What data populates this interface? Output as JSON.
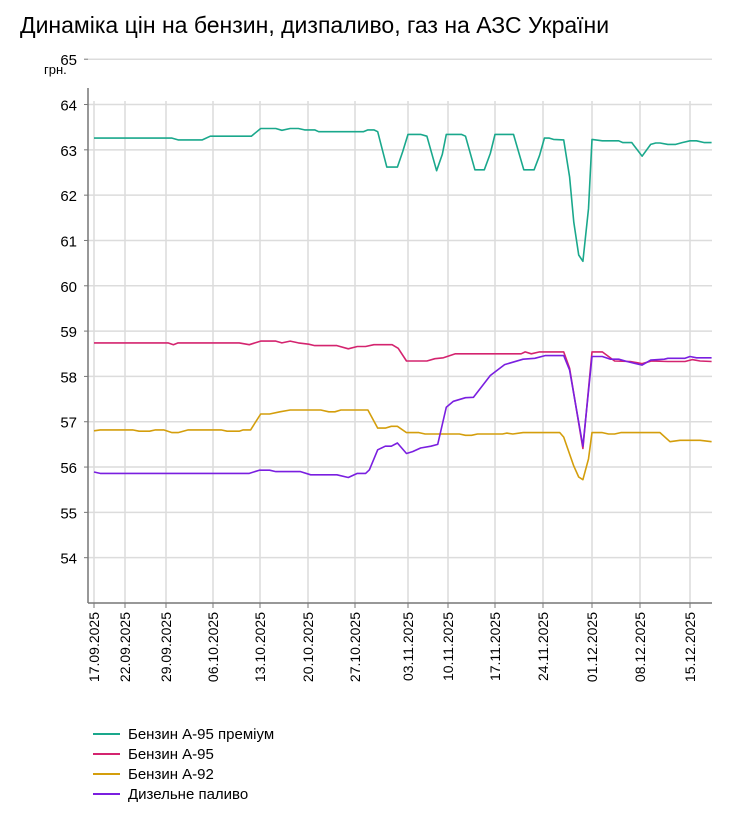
{
  "title": "Динаміка цін на бензин, дизпаливо, газ на АЗС України",
  "chart_data": {
    "type": "line",
    "title": "Динаміка цін на бензин, дизпаливо, газ на АЗС України",
    "ylabel": "грн.",
    "xlabel": "",
    "ylim": [
      53,
      65
    ],
    "yticks": [
      "54",
      "55",
      "56",
      "57",
      "58",
      "59",
      "60",
      "61",
      "62",
      "63",
      "64",
      "65"
    ],
    "x_unit": "days since 17.09.2025",
    "xticks": [
      {
        "label": "17.09.2025",
        "day": 0
      },
      {
        "label": "22.09.2025",
        "day": 5
      },
      {
        "label": "29.09.2025",
        "day": 12
      },
      {
        "label": "06.10.2025",
        "day": 19
      },
      {
        "label": "13.10.2025",
        "day": 26
      },
      {
        "label": "20.10.2025",
        "day": 33
      },
      {
        "label": "27.10.2025",
        "day": 40
      },
      {
        "label": "03.11.2025",
        "day": 47
      },
      {
        "label": "10.11.2025",
        "day": 54
      },
      {
        "label": "17.11.2025",
        "day": 61
      },
      {
        "label": "24.11.2025",
        "day": 68
      },
      {
        "label": "01.12.2025",
        "day": 75
      },
      {
        "label": "08.12.2025",
        "day": 82
      },
      {
        "label": "15.12.2025",
        "day": 89
      }
    ],
    "grid": true,
    "legend_position": "bottom-left",
    "series": [
      {
        "name": "Бензин А-95 преміум",
        "color": "#1aa88c",
        "points": [
          [
            0,
            63.26
          ],
          [
            12.9,
            63.26
          ],
          [
            13.8,
            63.22
          ],
          [
            17.4,
            63.22
          ],
          [
            18.6,
            63.3
          ],
          [
            24.7,
            63.3
          ],
          [
            26.1,
            63.47
          ],
          [
            28.3,
            63.47
          ],
          [
            29.2,
            63.43
          ],
          [
            30.4,
            63.47
          ],
          [
            31.6,
            63.47
          ],
          [
            32.5,
            63.44
          ],
          [
            34.0,
            63.44
          ],
          [
            34.6,
            63.4
          ],
          [
            41.1,
            63.4
          ],
          [
            41.7,
            63.44
          ],
          [
            42.5,
            63.44
          ],
          [
            43.0,
            63.4
          ],
          [
            44.2,
            62.62
          ],
          [
            45.6,
            62.62
          ],
          [
            46.3,
            62.96
          ],
          [
            47.0,
            63.34
          ],
          [
            49.2,
            63.34
          ],
          [
            50.3,
            63.3
          ],
          [
            52.0,
            62.54
          ],
          [
            53.0,
            62.9
          ],
          [
            53.7,
            63.34
          ],
          [
            56.0,
            63.34
          ],
          [
            56.6,
            63.3
          ],
          [
            58.0,
            62.56
          ],
          [
            59.4,
            62.56
          ],
          [
            60.3,
            62.92
          ],
          [
            61.0,
            63.34
          ],
          [
            63.7,
            63.34
          ],
          [
            65.2,
            62.56
          ],
          [
            66.7,
            62.56
          ],
          [
            67.5,
            62.88
          ],
          [
            68.2,
            63.26
          ],
          [
            68.9,
            63.26
          ],
          [
            69.5,
            63.23
          ],
          [
            70.96,
            63.22
          ],
          [
            71.8,
            62.4
          ],
          [
            72.4,
            61.4
          ],
          [
            73.1,
            60.68
          ],
          [
            73.7,
            60.54
          ],
          [
            74.5,
            61.7
          ],
          [
            75.0,
            63.23
          ],
          [
            76.5,
            63.2
          ],
          [
            78.9,
            63.2
          ],
          [
            79.5,
            63.16
          ],
          [
            80.8,
            63.16
          ],
          [
            82.3,
            62.86
          ],
          [
            83.5,
            63.12
          ],
          [
            84.2,
            63.15
          ],
          [
            84.8,
            63.15
          ],
          [
            85.9,
            63.12
          ],
          [
            87.0,
            63.12
          ],
          [
            87.9,
            63.16
          ],
          [
            89.0,
            63.2
          ],
          [
            89.9,
            63.2
          ],
          [
            91.0,
            63.16
          ],
          [
            92.0,
            63.16
          ]
        ]
      },
      {
        "name": "Бензин А-95",
        "color": "#d4246f",
        "points": [
          [
            0,
            58.74
          ],
          [
            12.3,
            58.74
          ],
          [
            13.1,
            58.7
          ],
          [
            13.8,
            58.74
          ],
          [
            22.9,
            58.74
          ],
          [
            24.4,
            58.7
          ],
          [
            26.1,
            58.78
          ],
          [
            28.3,
            58.78
          ],
          [
            29.2,
            58.74
          ],
          [
            30.4,
            58.78
          ],
          [
            31.6,
            58.74
          ],
          [
            33.1,
            58.71
          ],
          [
            34.0,
            58.68
          ],
          [
            37.3,
            58.68
          ],
          [
            39.0,
            58.61
          ],
          [
            40.3,
            58.66
          ],
          [
            41.4,
            58.66
          ],
          [
            42.5,
            58.7
          ],
          [
            44.9,
            58.7
          ],
          [
            45.7,
            58.62
          ],
          [
            46.8,
            58.34
          ],
          [
            50.3,
            58.34
          ],
          [
            51.7,
            58.39
          ],
          [
            53.2,
            58.41
          ],
          [
            55.1,
            58.5
          ],
          [
            64.8,
            58.5
          ],
          [
            65.4,
            58.54
          ],
          [
            66.3,
            58.5
          ],
          [
            67.5,
            58.54
          ],
          [
            70.96,
            58.54
          ],
          [
            71.8,
            58.18
          ],
          [
            73.7,
            56.41
          ],
          [
            75.0,
            58.54
          ],
          [
            76.5,
            58.54
          ],
          [
            78.3,
            58.34
          ],
          [
            80.6,
            58.33
          ],
          [
            82.3,
            58.28
          ],
          [
            83.6,
            58.34
          ],
          [
            85.9,
            58.33
          ],
          [
            88.3,
            58.33
          ],
          [
            89.3,
            58.37
          ],
          [
            90.4,
            58.34
          ],
          [
            92.0,
            58.33
          ]
        ]
      },
      {
        "name": "Бензин А-92",
        "color": "#d49e0c",
        "points": [
          [
            0,
            56.8
          ],
          [
            1.0,
            56.82
          ],
          [
            6.3,
            56.82
          ],
          [
            7.4,
            56.79
          ],
          [
            9.2,
            56.79
          ],
          [
            10.2,
            56.82
          ],
          [
            11.6,
            56.82
          ],
          [
            12.9,
            56.76
          ],
          [
            13.8,
            56.76
          ],
          [
            15.3,
            56.82
          ],
          [
            20.2,
            56.82
          ],
          [
            21.1,
            56.79
          ],
          [
            22.9,
            56.79
          ],
          [
            23.5,
            56.82
          ],
          [
            24.6,
            56.82
          ],
          [
            26.1,
            57.17
          ],
          [
            27.4,
            57.17
          ],
          [
            28.9,
            57.22
          ],
          [
            30.4,
            57.26
          ],
          [
            34.9,
            57.26
          ],
          [
            36.1,
            57.22
          ],
          [
            37.0,
            57.22
          ],
          [
            37.9,
            57.26
          ],
          [
            41.7,
            57.26
          ],
          [
            43.0,
            56.86
          ],
          [
            44.0,
            56.86
          ],
          [
            44.8,
            56.9
          ],
          [
            45.6,
            56.9
          ],
          [
            46.8,
            56.76
          ],
          [
            48.9,
            56.76
          ],
          [
            50.0,
            56.73
          ],
          [
            52.2,
            56.73
          ],
          [
            55.7,
            56.73
          ],
          [
            56.6,
            56.7
          ],
          [
            57.5,
            56.7
          ],
          [
            58.4,
            56.73
          ],
          [
            62.1,
            56.73
          ],
          [
            62.7,
            56.75
          ],
          [
            63.6,
            56.73
          ],
          [
            65.1,
            56.76
          ],
          [
            70.4,
            56.76
          ],
          [
            70.96,
            56.66
          ],
          [
            72.4,
            56.02
          ],
          [
            73.1,
            55.78
          ],
          [
            73.7,
            55.72
          ],
          [
            74.5,
            56.18
          ],
          [
            75.0,
            56.76
          ],
          [
            76.5,
            56.76
          ],
          [
            77.4,
            56.73
          ],
          [
            78.3,
            56.73
          ],
          [
            79.2,
            56.76
          ],
          [
            84.8,
            56.76
          ],
          [
            86.2,
            56.56
          ],
          [
            87.6,
            56.59
          ],
          [
            90.4,
            56.59
          ],
          [
            92.0,
            56.56
          ]
        ]
      },
      {
        "name": "Дизельне паливо",
        "color": "#7a1fe0",
        "points": [
          [
            0,
            55.89
          ],
          [
            1.0,
            55.86
          ],
          [
            24.4,
            55.86
          ],
          [
            25.9,
            55.93
          ],
          [
            27.4,
            55.93
          ],
          [
            28.3,
            55.9
          ],
          [
            31.9,
            55.9
          ],
          [
            33.4,
            55.83
          ],
          [
            37.3,
            55.83
          ],
          [
            39.0,
            55.77
          ],
          [
            40.3,
            55.86
          ],
          [
            41.4,
            55.86
          ],
          [
            41.9,
            55.94
          ],
          [
            43.0,
            56.38
          ],
          [
            44.0,
            56.46
          ],
          [
            44.8,
            56.46
          ],
          [
            45.6,
            56.53
          ],
          [
            46.8,
            56.3
          ],
          [
            47.8,
            56.34
          ],
          [
            49.2,
            56.42
          ],
          [
            51.0,
            56.46
          ],
          [
            52.2,
            56.5
          ],
          [
            53.7,
            57.32
          ],
          [
            54.8,
            57.45
          ],
          [
            56.6,
            57.53
          ],
          [
            57.8,
            57.54
          ],
          [
            60.3,
            58.02
          ],
          [
            62.4,
            58.26
          ],
          [
            65.1,
            58.38
          ],
          [
            66.8,
            58.4
          ],
          [
            68.3,
            58.46
          ],
          [
            70.96,
            58.46
          ],
          [
            71.8,
            58.14
          ],
          [
            73.7,
            56.46
          ],
          [
            75.0,
            58.44
          ],
          [
            76.5,
            58.44
          ],
          [
            77.7,
            58.38
          ],
          [
            78.9,
            58.38
          ],
          [
            80.1,
            58.33
          ],
          [
            82.3,
            58.25
          ],
          [
            83.5,
            58.36
          ],
          [
            85.4,
            58.38
          ],
          [
            85.9,
            58.4
          ],
          [
            88.3,
            58.4
          ],
          [
            89.0,
            58.44
          ],
          [
            89.9,
            58.41
          ],
          [
            92.0,
            58.41
          ]
        ]
      }
    ]
  }
}
